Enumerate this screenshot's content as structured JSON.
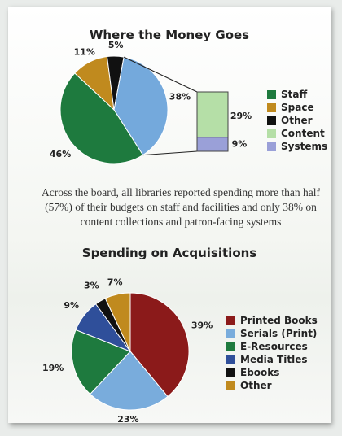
{
  "chart_data": [
    {
      "type": "pie",
      "title": "Where the Money Goes",
      "slices": [
        {
          "label": "Staff",
          "value": 46,
          "display": "46%",
          "color": "#1e7a3e"
        },
        {
          "label": "Space",
          "value": 11,
          "display": "11%",
          "color": "#c08a1e"
        },
        {
          "label": "Other",
          "value": 5,
          "display": "5%",
          "color": "#111111"
        },
        {
          "label": "Content",
          "value": 29,
          "display": "29%",
          "color": "#b5dfa7"
        },
        {
          "label": "Systems",
          "value": 9,
          "display": "9%",
          "color": "#9aa0d8"
        }
      ],
      "combined_slice": {
        "label": "38%",
        "value": 38,
        "color": "#74a9dc",
        "parts": [
          "Content",
          "Systems"
        ]
      },
      "legend_position": "right"
    },
    {
      "type": "pie",
      "title": "Spending on Acquisitions",
      "slices": [
        {
          "label": "Printed Books",
          "value": 39,
          "display": "39%",
          "color": "#8b1a1a"
        },
        {
          "label": "Serials (Print)",
          "value": 23,
          "display": "23%",
          "color": "#79acdc"
        },
        {
          "label": "E-Resources",
          "value": 19,
          "display": "19%",
          "color": "#1e7a3e"
        },
        {
          "label": "Media Titles",
          "value": 9,
          "display": "9%",
          "color": "#2f4f9a"
        },
        {
          "label": "Ebooks",
          "value": 3,
          "display": "3%",
          "color": "#111111"
        },
        {
          "label": "Other",
          "value": 7,
          "display": "7%",
          "color": "#c08a1e"
        }
      ],
      "legend_position": "right"
    }
  ],
  "caption": "Across the board, all libraries reported spending more than half (57%) of their budgets on staff and facilities and only 38% on content collections and patron-facing systems"
}
